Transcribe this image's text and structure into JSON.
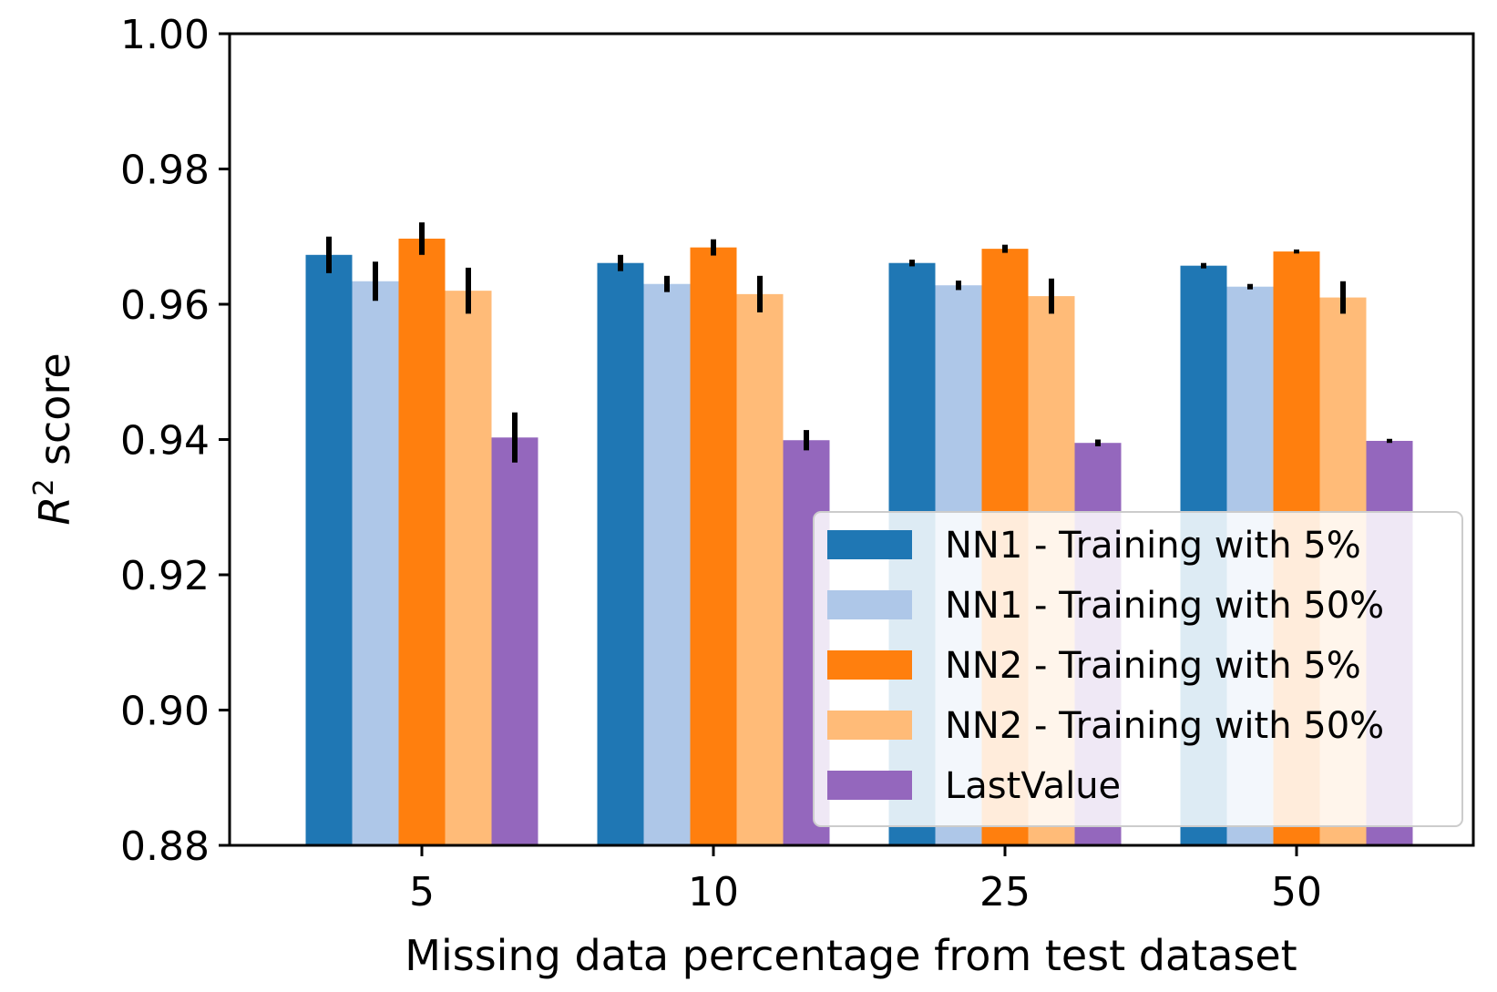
{
  "chart_data": {
    "type": "bar",
    "xlabel": "Missing data percentage from test dataset",
    "ylabel_main": "R",
    "ylabel_sup": "2",
    "ylabel_rest": " score",
    "categories": [
      "5",
      "10",
      "25",
      "50"
    ],
    "ylim": [
      0.88,
      1.0
    ],
    "yticks": [
      "0.88",
      "0.90",
      "0.92",
      "0.94",
      "0.96",
      "0.98",
      "1.00"
    ],
    "grid": false,
    "legend_position": "lower-right",
    "series": [
      {
        "name": "NN1 - Training with 5%",
        "color": "#1f77b4",
        "values": [
          0.9673,
          0.9661,
          0.9661,
          0.9657
        ],
        "err": [
          0.0027,
          0.0012,
          0.0005,
          0.0004
        ]
      },
      {
        "name": "NN1 - Training with 50%",
        "color": "#aec7e8",
        "values": [
          0.9634,
          0.963,
          0.9628,
          0.9626
        ],
        "err": [
          0.0029,
          0.0012,
          0.0007,
          0.0004
        ]
      },
      {
        "name": "NN2 - Training with 5%",
        "color": "#ff7f0e",
        "values": [
          0.9697,
          0.9684,
          0.9682,
          0.9678
        ],
        "err": [
          0.0024,
          0.0012,
          0.0006,
          0.0003
        ]
      },
      {
        "name": "NN2 - Training with 50%",
        "color": "#ffbb78",
        "values": [
          0.962,
          0.9615,
          0.9612,
          0.961
        ],
        "err": [
          0.0034,
          0.0027,
          0.0026,
          0.0024
        ]
      },
      {
        "name": "LastValue",
        "color": "#9467bd",
        "values": [
          0.9403,
          0.9399,
          0.9395,
          0.9398
        ],
        "err": [
          0.0037,
          0.0015,
          0.0005,
          0.0003
        ]
      }
    ]
  }
}
